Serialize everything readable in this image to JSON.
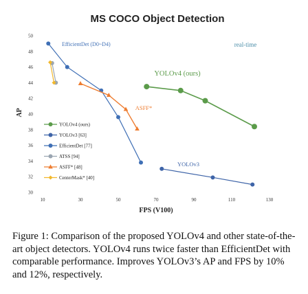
{
  "caption": "Figure 1: Comparison of the proposed YOLOv4 and other state-of-the-art object detectors. YOLOv4 runs twice faster than EfficientDet with comparable performance. Improves YOLOv3’s AP and FPS by 10% and 12%, respectively.",
  "chart_data": {
    "type": "line",
    "title": "MS COCO Object Detection",
    "xlabel": "FPS (V100)",
    "ylabel": "AP",
    "xlim": [
      10,
      130
    ],
    "ylim": [
      30,
      50
    ],
    "xticks": [
      10,
      30,
      50,
      70,
      90,
      110,
      130
    ],
    "yticks": [
      30,
      32,
      34,
      36,
      38,
      40,
      42,
      44,
      46,
      48,
      50
    ],
    "grid": false,
    "legend_position": "lower-left",
    "annotations": [
      {
        "text": "EfficientDet (D0~D4)",
        "color": "#3f6fb5"
      },
      {
        "text": "real-time",
        "color": "#4c8ea9"
      }
    ],
    "series": [
      {
        "name": "YOLOv4 (ours)",
        "label": "YOLOv4 (ours)",
        "color": "#5b9b4a",
        "marker": "circle",
        "x": [
          65,
          83,
          96,
          122
        ],
        "y": [
          43.5,
          43.0,
          41.7,
          38.4
        ]
      },
      {
        "name": "YOLOv3 [63]",
        "label": "YOLOv3",
        "color": "#3e64a8",
        "marker": "circle",
        "x": [
          73,
          100,
          121
        ],
        "y": [
          33.0,
          31.9,
          31.0
        ]
      },
      {
        "name": "EfficientDet [77]",
        "label": "",
        "color": "#3f6fb5",
        "marker": "circle",
        "x": [
          13,
          23,
          41,
          50,
          62
        ],
        "y": [
          49.0,
          46.0,
          43.0,
          39.6,
          33.8
        ]
      },
      {
        "name": "ATSS [94]",
        "label": "",
        "color": "#9aa5b1",
        "marker": "circle",
        "x": [
          15,
          17
        ],
        "y": [
          46.5,
          44.0
        ]
      },
      {
        "name": "ASFF* [48]",
        "label": "ASFF*",
        "color": "#ee7d31",
        "marker": "triangle",
        "x": [
          30,
          45,
          54,
          60
        ],
        "y": [
          43.9,
          42.4,
          40.6,
          38.1
        ]
      },
      {
        "name": "CenterMask* [40]",
        "label": "",
        "color": "#f2b82c",
        "marker": "diamond",
        "x": [
          14,
          16
        ],
        "y": [
          46.6,
          44.0
        ]
      }
    ]
  }
}
